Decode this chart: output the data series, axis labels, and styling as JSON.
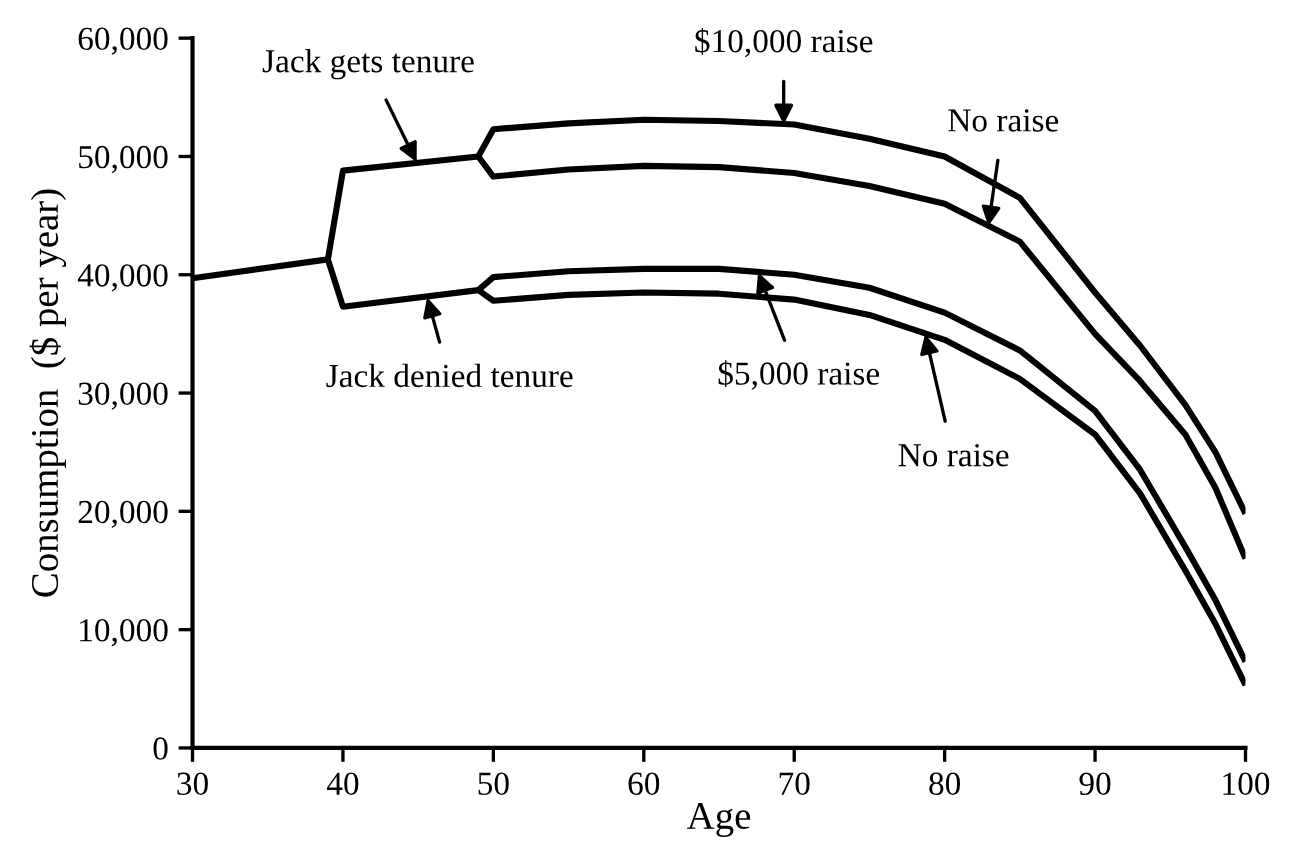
{
  "chart_data": {
    "type": "line",
    "xlabel": "Age",
    "ylabel": "Consumption  ($ per year)",
    "xlim": [
      30,
      100
    ],
    "xticks": [
      30,
      40,
      50,
      60,
      70,
      80,
      90,
      100
    ],
    "ylim": [
      0,
      60000
    ],
    "yticks": [
      {
        "value": 0,
        "label": "0"
      },
      {
        "value": 10000,
        "label": "10,000"
      },
      {
        "value": 20000,
        "label": "20,000"
      },
      {
        "value": 30000,
        "label": "30,000"
      },
      {
        "value": 40000,
        "label": "40,000"
      },
      {
        "value": 50000,
        "label": "50,000"
      },
      {
        "value": 60000,
        "label": "60,000"
      }
    ],
    "grid": false,
    "legend": false,
    "marker": "none",
    "line_style": "solid",
    "series": [
      {
        "color": "#000000",
        "x": [
          30,
          39
        ],
        "values": [
          39700,
          41300
        ]
      },
      {
        "color": "#000000",
        "x": [
          39,
          40,
          49
        ],
        "values": [
          41300,
          48800,
          50000
        ]
      },
      {
        "color": "#000000",
        "x": [
          39,
          40,
          49
        ],
        "values": [
          41300,
          37300,
          38700
        ]
      },
      {
        "color": "#000000",
        "x": [
          49,
          50,
          55,
          60,
          65,
          70,
          75,
          80,
          85,
          90,
          93,
          96,
          98,
          100
        ],
        "values": [
          50000,
          52300,
          52800,
          53100,
          53000,
          52700,
          51500,
          50000,
          46500,
          38500,
          34000,
          29000,
          25000,
          19800
        ]
      },
      {
        "color": "#000000",
        "x": [
          49,
          50,
          55,
          60,
          65,
          70,
          75,
          80,
          85,
          90,
          93,
          96,
          98,
          100
        ],
        "values": [
          50000,
          48300,
          48900,
          49200,
          49100,
          48600,
          47500,
          46000,
          42800,
          35000,
          31000,
          26500,
          22000,
          16000
        ]
      },
      {
        "color": "#000000",
        "x": [
          49,
          50,
          55,
          60,
          65,
          70,
          75,
          80,
          85,
          90,
          93,
          96,
          98,
          100
        ],
        "values": [
          38700,
          39800,
          40300,
          40500,
          40500,
          40000,
          38900,
          36800,
          33600,
          28500,
          23500,
          17000,
          12500,
          7300
        ]
      },
      {
        "color": "#000000",
        "x": [
          49,
          50,
          55,
          60,
          65,
          70,
          75,
          80,
          85,
          90,
          93,
          96,
          98,
          100
        ],
        "values": [
          38700,
          37800,
          38300,
          38500,
          38400,
          37900,
          36600,
          34500,
          31200,
          26500,
          21500,
          15000,
          10500,
          5300
        ]
      }
    ],
    "annotations": [
      {
        "text": "Jack gets tenure",
        "x": 44.9,
        "y": 49500
      },
      {
        "text": "Jack denied tenure",
        "x": 45.6,
        "y": 38100
      },
      {
        "text": "$10,000 raise",
        "x": 69.3,
        "y": 52700
      },
      {
        "text": "No raise",
        "x": 82.9,
        "y": 44100
      },
      {
        "text": "$5,000 raise",
        "x": 67.6,
        "y": 40200
      },
      {
        "text": "No raise",
        "x": 78.7,
        "y": 35000
      }
    ]
  }
}
